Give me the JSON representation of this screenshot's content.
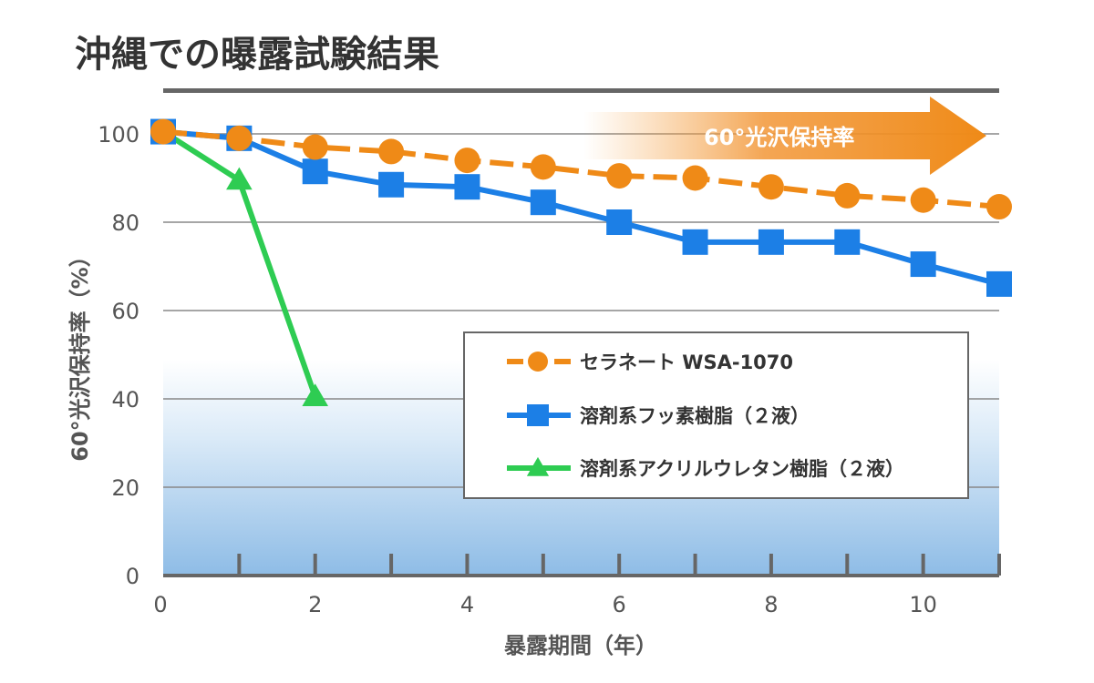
{
  "title": "沖縄での曝露試験結果",
  "arrow_label": "60°光沢保持率",
  "chart_data": {
    "type": "line",
    "xlabel": "暴露期間（年）",
    "ylabel": "60°光沢保持率（%）",
    "xlim": [
      0,
      11
    ],
    "ylim": [
      0,
      100
    ],
    "x_ticks": [
      0,
      2,
      4,
      6,
      8,
      10
    ],
    "x_minor_ticks": [
      1,
      2,
      3,
      4,
      5,
      6,
      7,
      8,
      9,
      10,
      11
    ],
    "y_ticks": [
      0,
      20,
      40,
      60,
      80,
      100
    ],
    "grid": "horizontal",
    "legend_position": "right-middle",
    "series": [
      {
        "name": "セラネート WSA-1070",
        "marker": "circle",
        "color": "#ef8a17",
        "dashed": true,
        "x": [
          0,
          1,
          2,
          3,
          4,
          5,
          6,
          7,
          8,
          9,
          10,
          11
        ],
        "y": [
          100.5,
          99,
          97,
          96,
          94,
          92.5,
          90.5,
          90,
          88,
          86,
          85,
          83.5
        ]
      },
      {
        "name": "溶剤系フッ素樹脂（２液）",
        "marker": "square",
        "color": "#1c7fe6",
        "dashed": false,
        "x": [
          0,
          1,
          2,
          3,
          4,
          5,
          6,
          7,
          8,
          9,
          10,
          11
        ],
        "y": [
          100.5,
          99,
          91.5,
          88.5,
          88,
          84.5,
          80,
          75.5,
          75.5,
          75.5,
          70.5,
          66
        ]
      },
      {
        "name": "溶剤系アクリルウレタン樹脂（２液）",
        "marker": "triangle",
        "color": "#2ecc52",
        "dashed": false,
        "x": [
          0,
          1,
          2
        ],
        "y": [
          100.5,
          89.5,
          40.5
        ]
      }
    ]
  }
}
